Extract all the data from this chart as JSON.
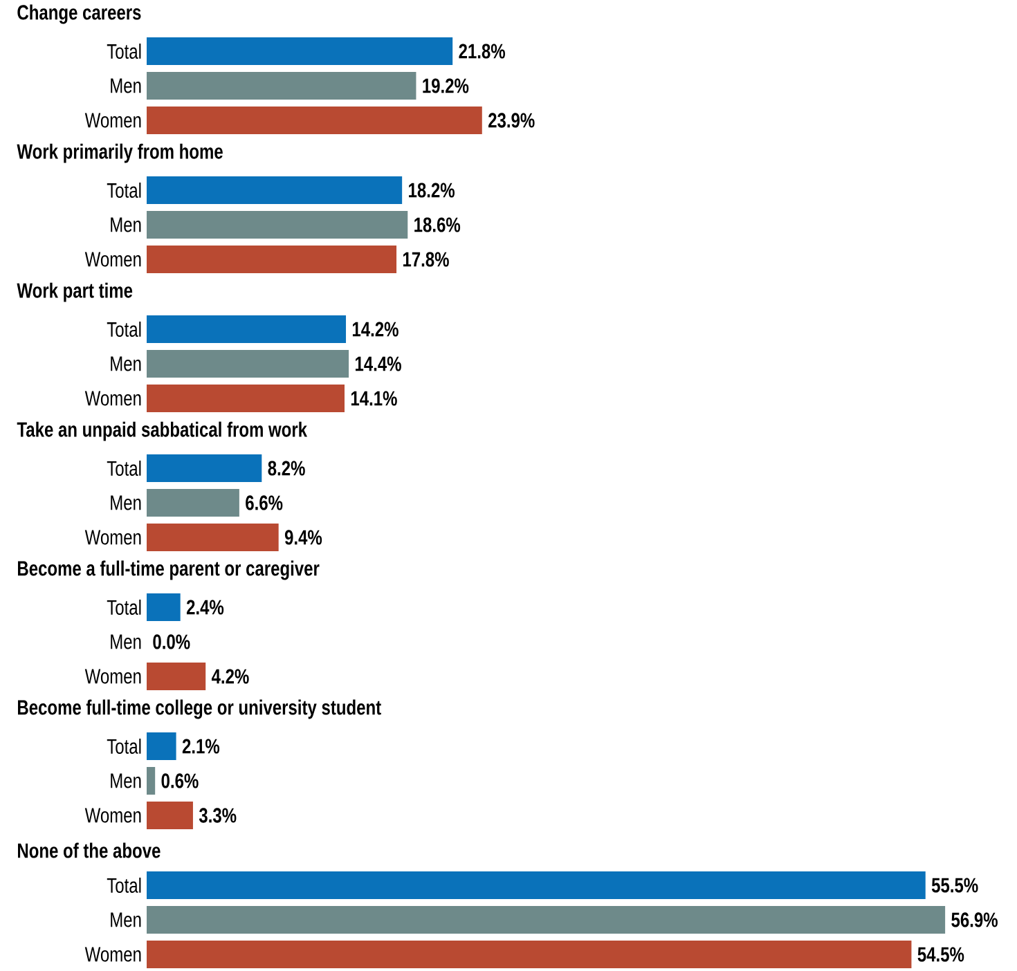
{
  "chart_data": [
    {
      "type": "bar",
      "orientation": "horizontal",
      "title": "Change careers",
      "categories": [
        "Total",
        "Men",
        "Women"
      ],
      "values": [
        21.8,
        19.2,
        23.9
      ],
      "colors": [
        "#0a72ba",
        "#6e8a8a",
        "#b94a32"
      ],
      "value_labels": [
        "21.8%",
        "19.2%",
        "23.9%"
      ],
      "tick_labels": "y"
    },
    {
      "type": "bar",
      "orientation": "horizontal",
      "title": "Work primarily from home",
      "categories": [
        "Total",
        "Men",
        "Women"
      ],
      "values": [
        18.2,
        18.6,
        17.8
      ],
      "colors": [
        "#0a72ba",
        "#6e8a8a",
        "#b94a32"
      ],
      "value_labels": [
        "18.2%",
        "18.6%",
        "17.8%"
      ],
      "tick_labels": "y"
    },
    {
      "type": "bar",
      "orientation": "horizontal",
      "title": "Work part time",
      "categories": [
        "Total",
        "Men",
        "Women"
      ],
      "values": [
        14.2,
        14.4,
        14.1
      ],
      "colors": [
        "#0a72ba",
        "#6e8a8a",
        "#b94a32"
      ],
      "value_labels": [
        "14.2%",
        "14.4%",
        "14.1%"
      ],
      "tick_labels": "y"
    },
    {
      "type": "bar",
      "orientation": "horizontal",
      "title": "Take an unpaid sabbatical from work",
      "categories": [
        "Total",
        "Men",
        "Women"
      ],
      "values": [
        8.2,
        6.6,
        9.4
      ],
      "colors": [
        "#0a72ba",
        "#6e8a8a",
        "#b94a32"
      ],
      "value_labels": [
        "8.2%",
        "6.6%",
        "9.4%"
      ],
      "tick_labels": "y"
    },
    {
      "type": "bar",
      "orientation": "horizontal",
      "title": "Become a full-time parent or caregiver",
      "categories": [
        "Total",
        "Men",
        "Women"
      ],
      "values": [
        2.4,
        0.0,
        4.2
      ],
      "colors": [
        "#0a72ba",
        "#6e8a8a",
        "#b94a32"
      ],
      "value_labels": [
        "2.4%",
        "0.0%",
        "4.2%"
      ],
      "tick_labels": "y"
    },
    {
      "type": "bar",
      "orientation": "horizontal",
      "title": "Become full-time college or university student",
      "categories": [
        "Total",
        "Men",
        "Women"
      ],
      "values": [
        2.1,
        0.6,
        3.3
      ],
      "colors": [
        "#0a72ba",
        "#6e8a8a",
        "#b94a32"
      ],
      "value_labels": [
        "2.1%",
        "0.6%",
        "3.3%"
      ],
      "tick_labels": "y"
    },
    {
      "type": "bar",
      "orientation": "horizontal",
      "title": "None of the above",
      "categories": [
        "Total",
        "Men",
        "Women"
      ],
      "values": [
        55.5,
        56.9,
        54.5
      ],
      "colors": [
        "#0a72ba",
        "#6e8a8a",
        "#b94a32"
      ],
      "value_labels": [
        "55.5%",
        "56.9%",
        "54.5%"
      ],
      "tick_labels": "y"
    }
  ]
}
